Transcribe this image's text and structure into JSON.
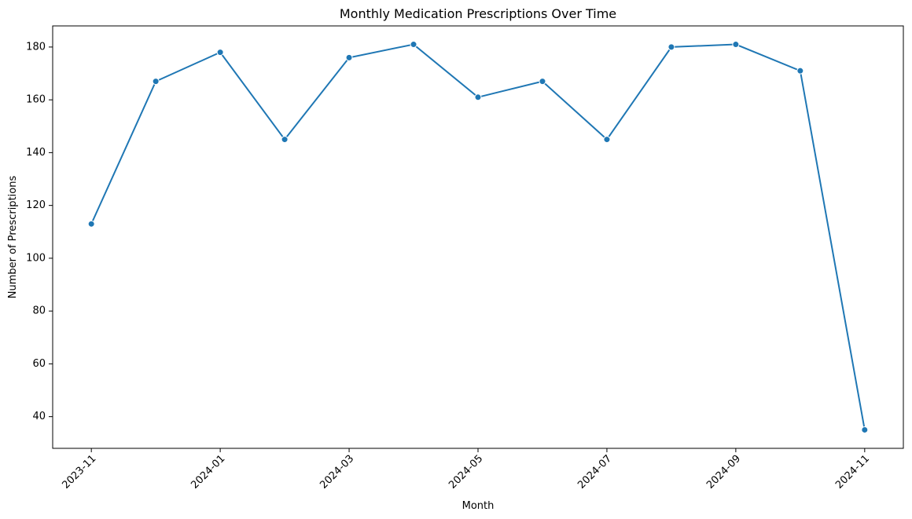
{
  "chart_data": {
    "type": "line",
    "title": "Monthly Medication Prescriptions Over Time",
    "xlabel": "Month",
    "ylabel": "Number of Prescriptions",
    "x": [
      "2023-11",
      "2023-12",
      "2024-01",
      "2024-02",
      "2024-03",
      "2024-04",
      "2024-05",
      "2024-06",
      "2024-07",
      "2024-08",
      "2024-09",
      "2024-10",
      "2024-11"
    ],
    "x_tick_labels": [
      "2023-11",
      "2024-01",
      "2024-03",
      "2024-05",
      "2024-07",
      "2024-09",
      "2024-11"
    ],
    "y_ticks": [
      40,
      60,
      80,
      100,
      120,
      140,
      160,
      180
    ],
    "ylim": [
      28,
      188
    ],
    "series": [
      {
        "values": [
          113,
          167,
          178,
          145,
          176,
          181,
          161,
          167,
          145,
          180,
          181,
          171,
          35
        ],
        "color": "#1f77b4",
        "marker": "circle"
      }
    ],
    "grid": false,
    "legend": "none"
  }
}
